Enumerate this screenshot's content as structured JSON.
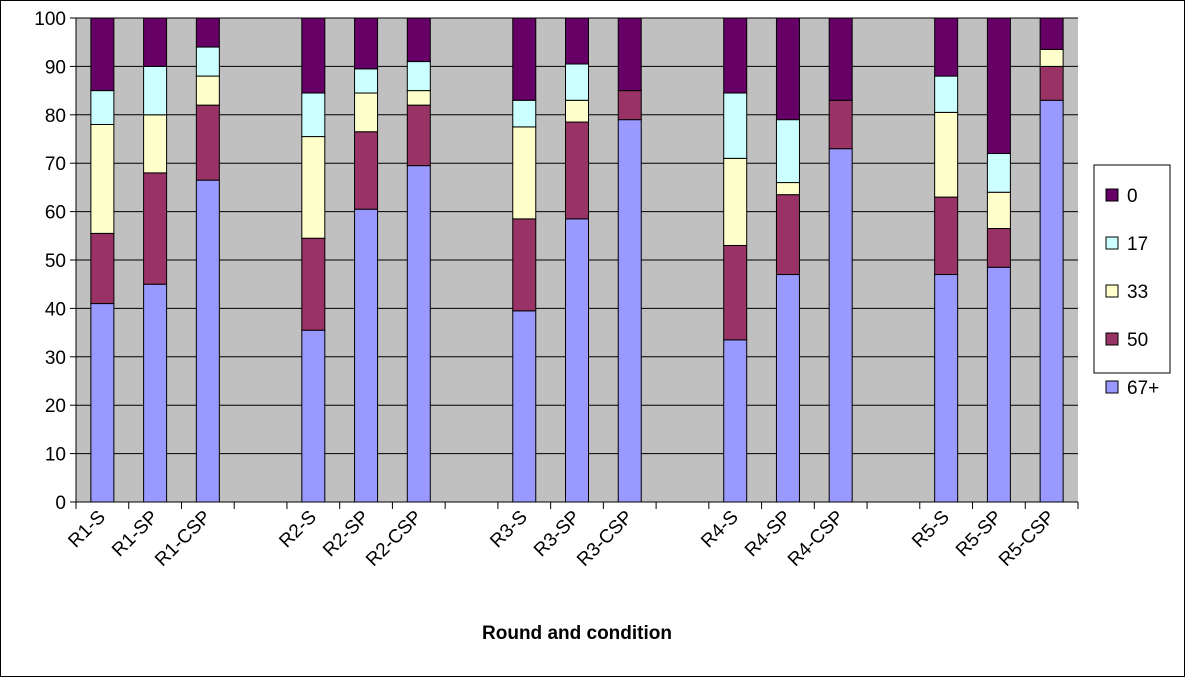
{
  "chart_data": {
    "type": "bar",
    "stacked": true,
    "title": "",
    "xlabel": "Round and condition",
    "ylabel": "",
    "ylim": [
      0,
      100
    ],
    "yticks": [
      0,
      10,
      20,
      30,
      40,
      50,
      60,
      70,
      80,
      90,
      100
    ],
    "grid": true,
    "legend_position": "right",
    "plot_background": "#c0c0c0",
    "categories": [
      "R1-S",
      "R1-SP",
      "R1-CSP",
      "",
      "R2-S",
      "R2-SP",
      "R2-CSP",
      "",
      "R3-S",
      "R3-SP",
      "R3-CSP",
      "",
      "R4-S",
      "R4-SP",
      "R4-CSP",
      "",
      "R5-S",
      "R5-SP",
      "R5-CSP"
    ],
    "series": [
      {
        "name": "67+",
        "color": "#9999ff",
        "values": [
          41,
          45,
          66.5,
          0,
          35.5,
          60.5,
          69.5,
          0,
          39.5,
          58.5,
          79,
          0,
          33.5,
          47,
          73,
          0,
          47,
          48.5,
          83
        ]
      },
      {
        "name": "50",
        "color": "#993366",
        "values": [
          14.5,
          23,
          15.5,
          0,
          19,
          16,
          12.5,
          0,
          19,
          20,
          6,
          0,
          19.5,
          16.5,
          10,
          0,
          16,
          8,
          7
        ]
      },
      {
        "name": "33",
        "color": "#ffffcc",
        "values": [
          22.5,
          12,
          6,
          0,
          21,
          8,
          3,
          0,
          19,
          4.5,
          0,
          0,
          18,
          2.5,
          0,
          0,
          17.5,
          7.5,
          3.5
        ]
      },
      {
        "name": "17",
        "color": "#ccffff",
        "values": [
          7,
          10,
          6,
          0,
          9,
          5,
          6,
          0,
          5.5,
          7.5,
          0,
          0,
          13.5,
          13,
          0,
          0,
          7.5,
          8,
          0
        ]
      },
      {
        "name": "0",
        "color": "#660066",
        "values": [
          15,
          10,
          6,
          0,
          15.5,
          10.5,
          9,
          0,
          17,
          9.5,
          15,
          0,
          15.5,
          21,
          17,
          0,
          12,
          28,
          6.5
        ]
      }
    ],
    "legend_order": [
      "0",
      "17",
      "33",
      "50",
      "67+"
    ]
  }
}
